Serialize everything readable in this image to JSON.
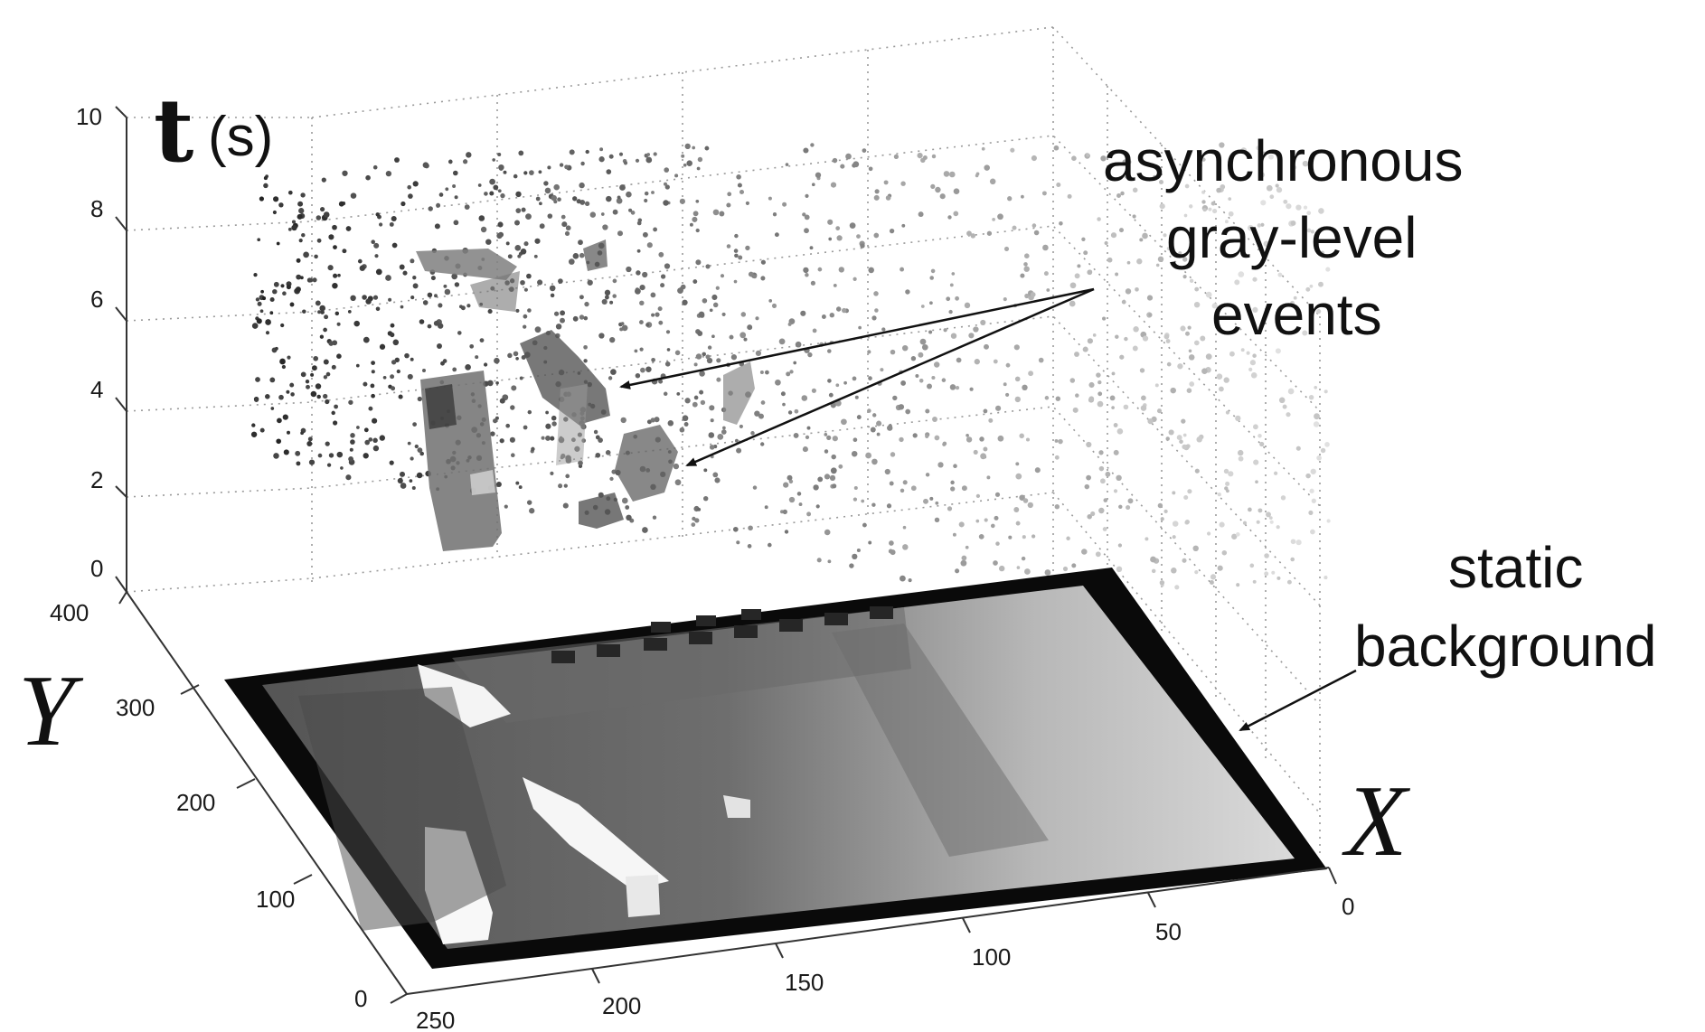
{
  "chart_data": {
    "type": "scatter",
    "projection": "3d",
    "title": "",
    "axes": {
      "x": {
        "label": "X",
        "ticks": [
          "0",
          "50",
          "100",
          "150",
          "200",
          "250"
        ],
        "range": [
          0,
          250
        ]
      },
      "y": {
        "label": "Y",
        "ticks": [
          "0",
          "100",
          "200",
          "300",
          "400"
        ],
        "range": [
          0,
          400
        ]
      },
      "t": {
        "label_main": "t",
        "label_unit": "(s)",
        "ticks": [
          "0",
          "2",
          "4",
          "6",
          "8",
          "10"
        ],
        "range": [
          0,
          10
        ]
      }
    },
    "grid": true,
    "annotations": [
      {
        "lines": [
          "asynchronous",
          "gray-level",
          "events"
        ]
      },
      {
        "lines": [
          "static",
          "background"
        ]
      }
    ]
  },
  "colors": {
    "background": "#ffffff",
    "axis": "#333333",
    "grid": "#9a9a9a",
    "text": "#111111"
  }
}
